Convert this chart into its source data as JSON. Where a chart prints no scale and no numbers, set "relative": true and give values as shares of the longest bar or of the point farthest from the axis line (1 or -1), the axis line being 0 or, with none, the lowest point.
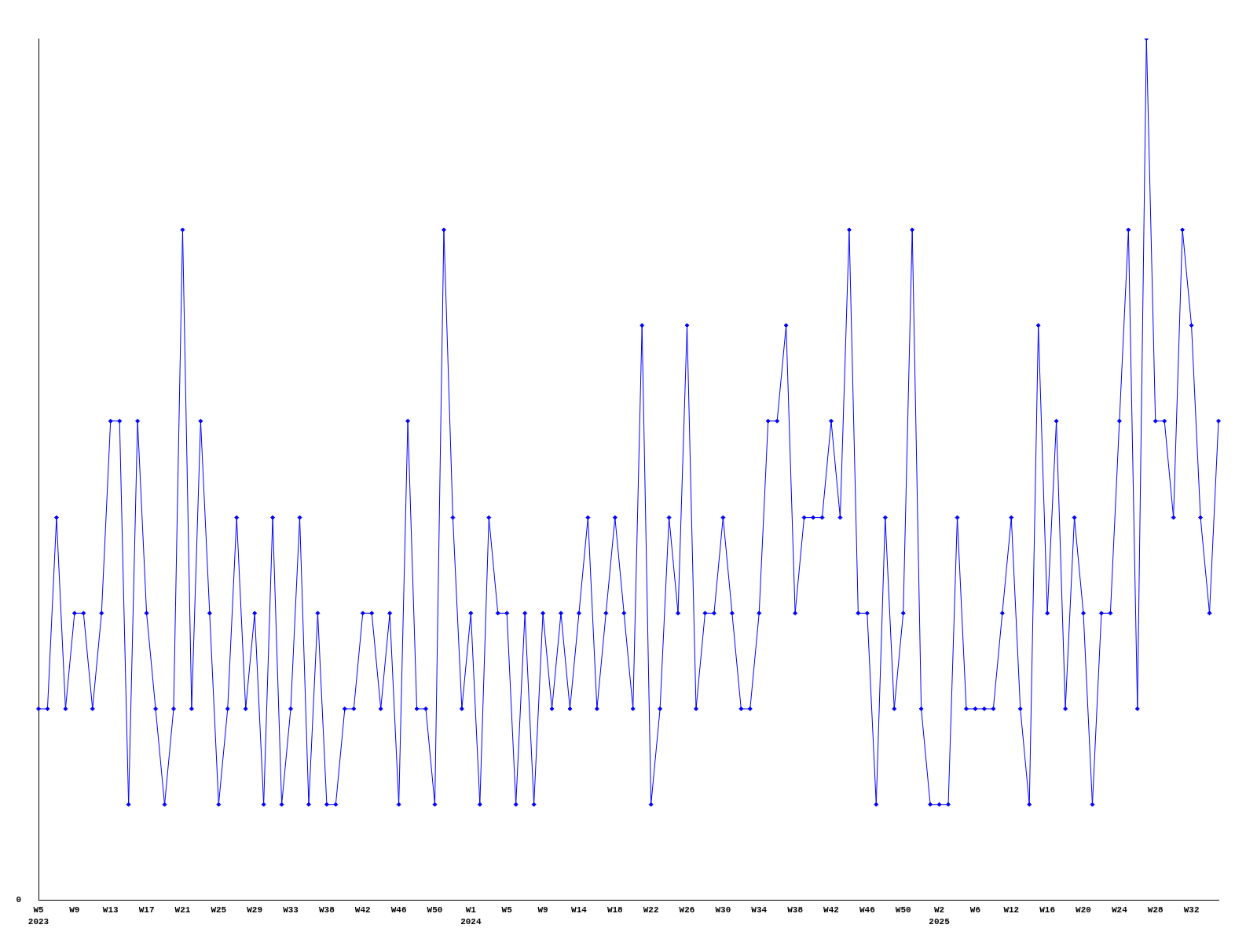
{
  "chart_data": {
    "type": "line",
    "relative": true,
    "color": "#0000ff",
    "marker": "diamond",
    "grid": false,
    "legend": false,
    "annotations": [
      "0"
    ],
    "categories": [
      "W5\n2023",
      null,
      null,
      null,
      "W9",
      null,
      null,
      null,
      "W13",
      null,
      null,
      null,
      "W17",
      null,
      null,
      null,
      "W21",
      null,
      null,
      null,
      "W25",
      null,
      null,
      null,
      "W29",
      null,
      null,
      null,
      "W33",
      null,
      null,
      null,
      "W38",
      null,
      null,
      null,
      "W42",
      null,
      null,
      null,
      "W46",
      null,
      null,
      null,
      "W50",
      null,
      null,
      null,
      "W1\n2024",
      null,
      null,
      null,
      "W5",
      null,
      null,
      null,
      "W9",
      null,
      null,
      null,
      "W14",
      null,
      null,
      null,
      "W18",
      null,
      null,
      null,
      "W22",
      null,
      null,
      null,
      "W26",
      null,
      null,
      null,
      "W30",
      null,
      null,
      null,
      "W34",
      null,
      null,
      null,
      "W38",
      null,
      null,
      null,
      "W42",
      null,
      null,
      null,
      "W46",
      null,
      null,
      null,
      "W50",
      null,
      null,
      null,
      "W2\n2025",
      null,
      null,
      null,
      "W6",
      null,
      null,
      null,
      "W12",
      null,
      null,
      null,
      "W16",
      null,
      null,
      null,
      "W20",
      null,
      null,
      null,
      "W24",
      null,
      null,
      null,
      "W28",
      null,
      null,
      null,
      "W32",
      null,
      null,
      null
    ],
    "values": [
      0.222,
      0.222,
      0.444,
      0.222,
      0.333,
      0.333,
      0.222,
      0.333,
      0.556,
      0.556,
      0.111,
      0.556,
      0.333,
      0.222,
      0.111,
      0.222,
      0.778,
      0.222,
      0.556,
      0.333,
      0.111,
      0.222,
      0.444,
      0.222,
      0.333,
      0.111,
      0.444,
      0.111,
      0.222,
      0.444,
      0.111,
      0.333,
      0.111,
      0.111,
      0.222,
      0.222,
      0.333,
      0.333,
      0.222,
      0.333,
      0.111,
      0.556,
      0.222,
      0.222,
      0.111,
      0.778,
      0.444,
      0.222,
      0.333,
      0.111,
      0.444,
      0.333,
      0.333,
      0.111,
      0.333,
      0.111,
      0.333,
      0.222,
      0.333,
      0.222,
      0.333,
      0.444,
      0.222,
      0.333,
      0.444,
      0.333,
      0.222,
      0.667,
      0.111,
      0.222,
      0.444,
      0.333,
      0.667,
      0.222,
      0.333,
      0.333,
      0.444,
      0.333,
      0.222,
      0.222,
      0.333,
      0.556,
      0.556,
      0.667,
      0.333,
      0.444,
      0.444,
      0.444,
      0.556,
      0.444,
      0.778,
      0.333,
      0.333,
      0.111,
      0.444,
      0.222,
      0.333,
      0.778,
      0.222,
      0.111,
      0.111,
      0.111,
      0.444,
      0.222,
      0.222,
      0.222,
      0.222,
      0.333,
      0.444,
      0.222,
      0.111,
      0.667,
      0.333,
      0.556,
      0.222,
      0.444,
      0.333,
      0.111,
      0.333,
      0.333,
      0.556,
      0.778,
      0.222,
      1,
      0.556,
      0.556,
      0.444,
      0.778,
      0.667,
      0.444,
      0.333,
      0.556
    ]
  }
}
